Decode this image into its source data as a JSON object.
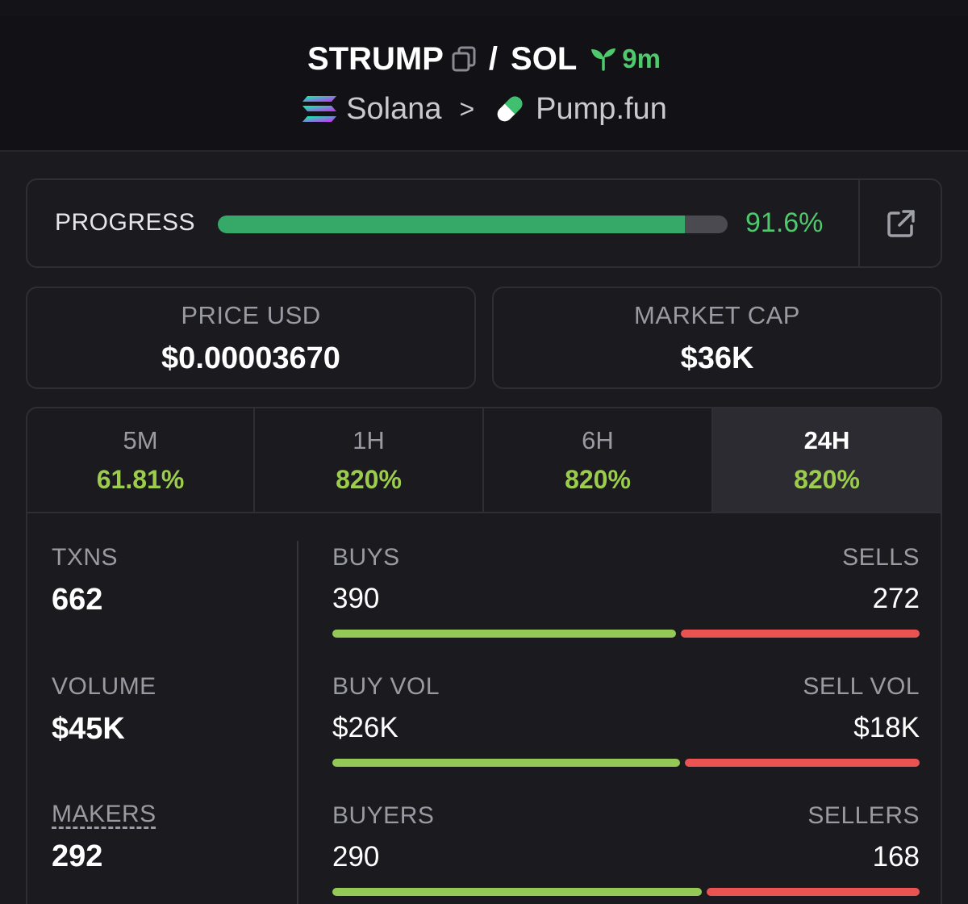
{
  "header": {
    "base_symbol": "STRUMP",
    "pair_separator": "/",
    "quote_symbol": "SOL",
    "age": "9m",
    "chain": "Solana",
    "breadcrumb_separator": ">",
    "dex": "Pump.fun"
  },
  "progress": {
    "label": "PROGRESS",
    "value_text": "91.6%",
    "fraction": 0.916
  },
  "stats": {
    "price_label": "PRICE USD",
    "price_value": "$0.00003670",
    "mcap_label": "MARKET CAP",
    "mcap_value": "$36K"
  },
  "tabs": [
    {
      "label": "5M",
      "change": "61.81%"
    },
    {
      "label": "1H",
      "change": "820%"
    },
    {
      "label": "6H",
      "change": "820%"
    },
    {
      "label": "24H",
      "change": "820%"
    }
  ],
  "metrics": {
    "txns_label": "TXNS",
    "txns_value": "662",
    "volume_label": "VOLUME",
    "volume_value": "$45K",
    "makers_label": "MAKERS",
    "makers_value": "292"
  },
  "splits": {
    "buys_label": "BUYS",
    "sells_label": "SELLS",
    "buys_value": "390",
    "sells_value": "272",
    "buys_fraction": 0.589,
    "buy_vol_label": "BUY VOL",
    "sell_vol_label": "SELL VOL",
    "buy_vol_value": "$26K",
    "sell_vol_value": "$18K",
    "buy_vol_fraction": 0.596,
    "buyers_label": "BUYERS",
    "sellers_label": "SELLERS",
    "buyers_value": "290",
    "sellers_value": "168",
    "buyers_fraction": 0.633
  },
  "colors": {
    "accent_green": "#4ec96b",
    "buy_bar": "#94c957",
    "sell_bar": "#eb5353",
    "progress_fill": "#36a868"
  }
}
